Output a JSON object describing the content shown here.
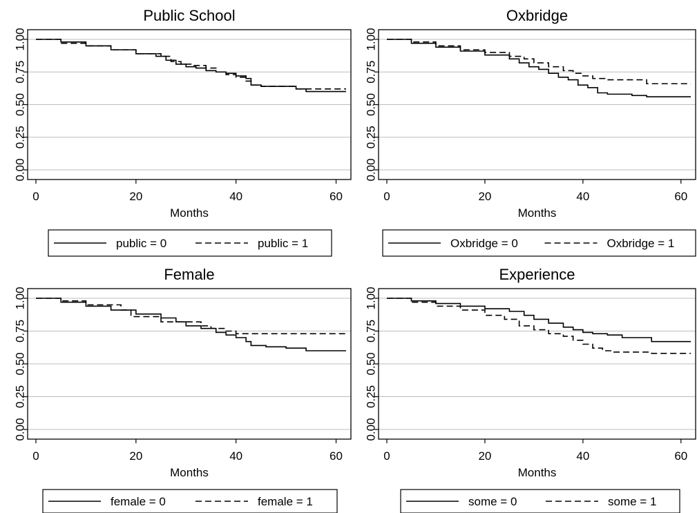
{
  "chart_data": [
    {
      "type": "line",
      "title": "Public School",
      "xlabel": "Months",
      "ylabel": "",
      "xlim": [
        0,
        62
      ],
      "ylim": [
        0,
        1
      ],
      "xticks": [
        "0",
        "20",
        "40",
        "60"
      ],
      "yticks": [
        "0.00",
        "0.25",
        "0.50",
        "0.75",
        "1.00"
      ],
      "grid": true,
      "step": true,
      "legend_position": "bottom",
      "series": [
        {
          "name": "public = 0",
          "style": "solid",
          "x": [
            0,
            5,
            10,
            15,
            20,
            24,
            26,
            28,
            30,
            32,
            34,
            36,
            38,
            40,
            42,
            43,
            45,
            50,
            52,
            54,
            62
          ],
          "y": [
            1.0,
            0.98,
            0.95,
            0.92,
            0.89,
            0.87,
            0.84,
            0.81,
            0.79,
            0.78,
            0.76,
            0.75,
            0.74,
            0.72,
            0.7,
            0.65,
            0.64,
            0.64,
            0.62,
            0.6,
            0.6
          ]
        },
        {
          "name": "public = 1",
          "style": "dashed",
          "x": [
            0,
            5,
            10,
            15,
            20,
            25,
            27,
            29,
            31,
            34,
            36,
            38,
            40,
            42,
            43,
            45,
            50,
            52,
            62
          ],
          "y": [
            1.0,
            0.97,
            0.95,
            0.92,
            0.89,
            0.87,
            0.83,
            0.81,
            0.8,
            0.78,
            0.75,
            0.73,
            0.71,
            0.68,
            0.65,
            0.64,
            0.64,
            0.62,
            0.62
          ]
        }
      ]
    },
    {
      "type": "line",
      "title": "Oxbridge",
      "xlabel": "Months",
      "ylabel": "",
      "xlim": [
        0,
        62
      ],
      "ylim": [
        0,
        1
      ],
      "xticks": [
        "0",
        "20",
        "40",
        "60"
      ],
      "yticks": [
        "0.00",
        "0.25",
        "0.50",
        "0.75",
        "1.00"
      ],
      "grid": true,
      "step": true,
      "legend_position": "bottom",
      "series": [
        {
          "name": "Oxbridge = 0",
          "style": "solid",
          "x": [
            0,
            5,
            10,
            15,
            20,
            25,
            27,
            29,
            31,
            33,
            35,
            37,
            39,
            41,
            43,
            45,
            50,
            53,
            62
          ],
          "y": [
            1.0,
            0.97,
            0.94,
            0.91,
            0.88,
            0.85,
            0.82,
            0.79,
            0.77,
            0.74,
            0.71,
            0.69,
            0.65,
            0.63,
            0.59,
            0.58,
            0.57,
            0.56,
            0.56
          ]
        },
        {
          "name": "Oxbridge = 1",
          "style": "dashed",
          "x": [
            0,
            5,
            10,
            15,
            20,
            25,
            28,
            30,
            33,
            36,
            38,
            40,
            42,
            45,
            50,
            53,
            62
          ],
          "y": [
            1.0,
            0.98,
            0.95,
            0.92,
            0.9,
            0.87,
            0.85,
            0.82,
            0.79,
            0.76,
            0.74,
            0.72,
            0.7,
            0.69,
            0.69,
            0.66,
            0.66
          ]
        }
      ]
    },
    {
      "type": "line",
      "title": "Female",
      "xlabel": "Months",
      "ylabel": "",
      "xlim": [
        0,
        62
      ],
      "ylim": [
        0,
        1
      ],
      "xticks": [
        "0",
        "20",
        "40",
        "60"
      ],
      "yticks": [
        "0.00",
        "0.25",
        "0.50",
        "0.75",
        "1.00"
      ],
      "grid": true,
      "step": true,
      "legend_position": "bottom",
      "series": [
        {
          "name": "female = 0",
          "style": "solid",
          "x": [
            0,
            5,
            10,
            15,
            20,
            25,
            28,
            30,
            33,
            36,
            38,
            40,
            42,
            43,
            46,
            50,
            54,
            62
          ],
          "y": [
            1.0,
            0.97,
            0.94,
            0.91,
            0.88,
            0.85,
            0.82,
            0.79,
            0.77,
            0.74,
            0.72,
            0.7,
            0.67,
            0.64,
            0.63,
            0.62,
            0.6,
            0.6
          ]
        },
        {
          "name": "female = 1",
          "style": "dashed",
          "x": [
            0,
            5,
            10,
            17,
            19,
            22,
            25,
            27,
            33,
            35,
            38,
            40,
            42,
            62
          ],
          "y": [
            1.0,
            0.98,
            0.95,
            0.91,
            0.86,
            0.86,
            0.82,
            0.82,
            0.79,
            0.77,
            0.75,
            0.73,
            0.73,
            0.73
          ]
        }
      ]
    },
    {
      "type": "line",
      "title": "Experience",
      "xlabel": "Months",
      "ylabel": "",
      "xlim": [
        0,
        62
      ],
      "ylim": [
        0,
        1
      ],
      "xticks": [
        "0",
        "20",
        "40",
        "60"
      ],
      "yticks": [
        "0.00",
        "0.25",
        "0.50",
        "0.75",
        "1.00"
      ],
      "grid": true,
      "step": true,
      "legend_position": "bottom",
      "series": [
        {
          "name": "some = 0",
          "style": "solid",
          "x": [
            0,
            5,
            10,
            15,
            20,
            25,
            28,
            30,
            33,
            36,
            38,
            40,
            42,
            45,
            48,
            50,
            54,
            62
          ],
          "y": [
            1.0,
            0.98,
            0.96,
            0.94,
            0.92,
            0.9,
            0.87,
            0.84,
            0.81,
            0.78,
            0.76,
            0.74,
            0.73,
            0.72,
            0.7,
            0.7,
            0.67,
            0.67
          ]
        },
        {
          "name": "some = 1",
          "style": "dashed",
          "x": [
            0,
            5,
            10,
            15,
            20,
            24,
            27,
            30,
            33,
            36,
            38,
            40,
            42,
            44,
            46,
            50,
            54,
            62
          ],
          "y": [
            1.0,
            0.97,
            0.94,
            0.91,
            0.87,
            0.84,
            0.79,
            0.76,
            0.73,
            0.71,
            0.68,
            0.65,
            0.62,
            0.6,
            0.59,
            0.59,
            0.58,
            0.58
          ]
        }
      ]
    }
  ]
}
